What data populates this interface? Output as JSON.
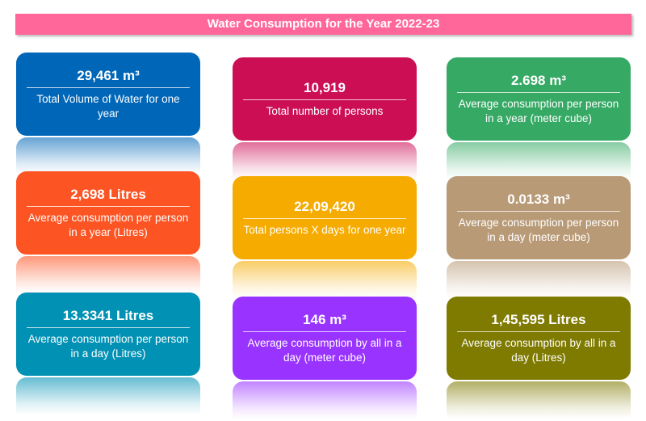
{
  "title": "Water Consumption for the Year 2022-23",
  "title_color": "#ff6699",
  "cards": [
    {
      "value": "29,461 m³",
      "label": "Total Volume of Water for one year",
      "color": "#0066b8"
    },
    {
      "value": "10,919",
      "label": "Total number of persons",
      "color": "#cc0e55"
    },
    {
      "value": "2.698 m³",
      "label": "Average consumption per person in a year (meter cube)",
      "color": "#36a965"
    },
    {
      "value": "2,698 Litres",
      "label": "Average consumption per person in a year (Litres)",
      "color": "#fc5423"
    },
    {
      "value": "22,09,420",
      "label": "Total persons X days for one year",
      "color": "#f5ab00"
    },
    {
      "value": "0.0133 m³",
      "label": "Average consumption per person in a day (meter cube)",
      "color": "#b89a77"
    },
    {
      "value": "13.3341 Litres",
      "label": "Average consumption per person in a day (Litres)",
      "color": "#0091b4"
    },
    {
      "value": "146 m³",
      "label": "Average consumption by all in a day (meter cube)",
      "color": "#9933ff"
    },
    {
      "value": "1,45,595 Litres",
      "label": "Average consumption by all in a day (Litres)",
      "color": "#7f7a00"
    }
  ]
}
